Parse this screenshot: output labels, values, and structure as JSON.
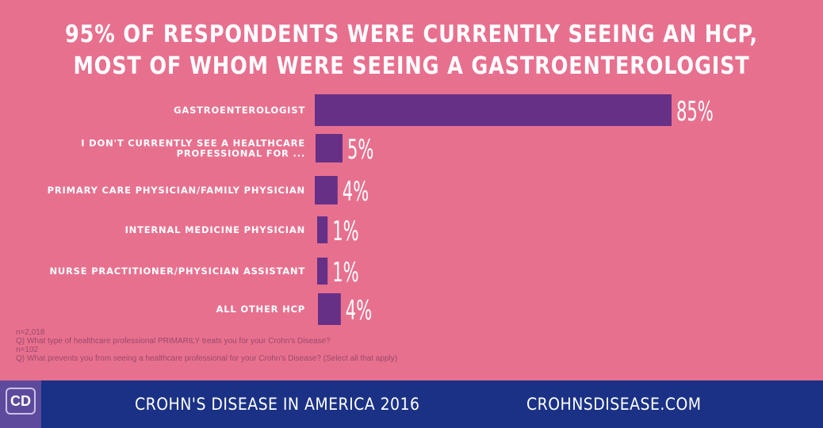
{
  "title": {
    "line1": "95% of respondents were currently seeing an HCP,",
    "line2": "most of whom were seeing a gastroenterologist"
  },
  "chart_data": {
    "type": "bar",
    "orientation": "horizontal",
    "categories": [
      [
        "GASTROENTEROLOGIST"
      ],
      [
        "I DON'T CURRENTLY SEE A HEALTHCARE",
        "PROFESSIONAL FOR ..."
      ],
      [
        "PRIMARY CARE PHYSICIAN/FAMILY PHYSICIAN"
      ],
      [
        "INTERNAL MEDICINE PHYSICIAN"
      ],
      [
        "NURSE PRACTITIONER/PHYSICIAN ASSISTANT"
      ],
      [
        "ALL OTHER HCP"
      ]
    ],
    "values": [
      85,
      5,
      4,
      1,
      1,
      4
    ],
    "value_labels": [
      "85%",
      "5%",
      "4%",
      "1%",
      "1%",
      "4%"
    ],
    "bar_color": "#663087",
    "background_color": "#e8708f",
    "grid": false
  },
  "notes": [
    "n=2,018",
    "Q) What type of healthcare professional PRIMARILY treats you for your Crohn's Disease?",
    "n=102",
    "Q) What prevents you from seeing a healthcare professional for your Crohn's Disease? (Select all that apply)"
  ],
  "footer": {
    "logo": "CD",
    "left_text": "CROHN'S DISEASE IN AMERICA 2016",
    "right_text": "CROHNSDISEASE.COM",
    "color": "#1a3185"
  }
}
